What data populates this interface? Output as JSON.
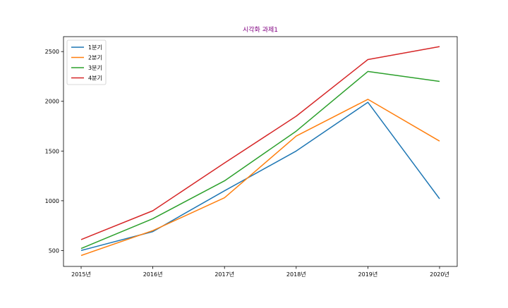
{
  "chart_data": {
    "type": "line",
    "title": "시각화 과제1",
    "title_color": "#800080",
    "xlabel": "",
    "ylabel": "",
    "categories": [
      "2015년",
      "2016년",
      "2017년",
      "2018년",
      "2019년",
      "2020년"
    ],
    "ylim": [
      340,
      2650
    ],
    "yticks": [
      500,
      1000,
      1500,
      2000,
      2500
    ],
    "grid": false,
    "legend_position": "top-left",
    "series": [
      {
        "name": "1분기",
        "color": "#1f77b4",
        "values": [
          500,
          690,
          1100,
          1500,
          1990,
          1020
        ]
      },
      {
        "name": "2분기",
        "color": "#ff7f0e",
        "values": [
          450,
          700,
          1030,
          1650,
          2020,
          1600
        ]
      },
      {
        "name": "3분기",
        "color": "#2ca02c",
        "values": [
          520,
          820,
          1200,
          1700,
          2300,
          2200
        ]
      },
      {
        "name": "4분기",
        "color": "#d62728",
        "values": [
          610,
          900,
          1380,
          1850,
          2420,
          2550
        ]
      }
    ]
  }
}
